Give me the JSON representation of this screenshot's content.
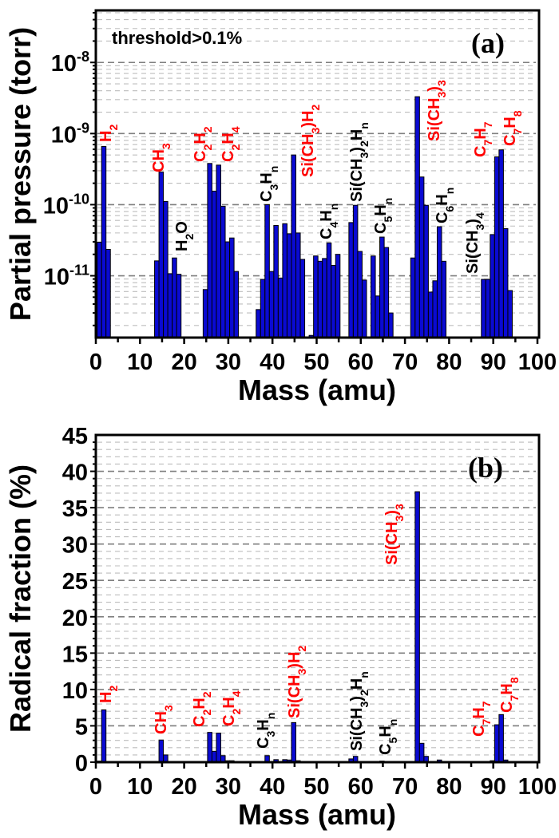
{
  "chart_data": [
    {
      "type": "bar",
      "panel_label": "(a)",
      "annotation_text": "threshold>0.1%",
      "xlabel": "Mass (amu)",
      "ylabel": "Partial pressure (torr)",
      "yscale": "log",
      "xlim": [
        0,
        100
      ],
      "ylim": [
        1.35e-12,
        5.4e-08
      ],
      "grid": true,
      "xticks": [
        0,
        10,
        20,
        30,
        40,
        50,
        60,
        70,
        80,
        90,
        100
      ],
      "yticks": [
        {
          "value": 1e-08,
          "base": "10",
          "exp": "-8"
        },
        {
          "value": 1e-09,
          "base": "10",
          "exp": "-9"
        },
        {
          "value": 1e-10,
          "base": "10",
          "exp": "-10"
        },
        {
          "value": 1e-11,
          "base": "10",
          "exp": "-11"
        }
      ],
      "bar_color": "#0a0ad2",
      "x": [
        1,
        2,
        3,
        14,
        15,
        16,
        17,
        18,
        19,
        25,
        26,
        27,
        28,
        29,
        30,
        31,
        32,
        37,
        38,
        39,
        40,
        41,
        42,
        43,
        44,
        45,
        46,
        47,
        49,
        50,
        51,
        52,
        53,
        54,
        55,
        58,
        59,
        60,
        61,
        63,
        64,
        65,
        66,
        67,
        72,
        73,
        74,
        75,
        76,
        77,
        78,
        79,
        88,
        89,
        90,
        91,
        92,
        93,
        94
      ],
      "values": [
        2.96e-11,
        6.6e-10,
        2.35e-11,
        1.62e-11,
        2.87e-10,
        1.11e-10,
        1.07e-11,
        1.78e-11,
        1.05e-11,
        6.4e-12,
        3.8e-10,
        1.55e-10,
        3.6e-10,
        9.5e-11,
        3e-11,
        3.4e-11,
        1.15e-11,
        3.35e-12,
        8.9e-12,
        1e-10,
        1.15e-11,
        5.1e-11,
        9.3e-12,
        5.4e-11,
        3.9e-11,
        5e-10,
        4e-11,
        1.7e-11,
        1.45e-12,
        1.9e-11,
        1.6e-11,
        1.75e-11,
        2.9e-11,
        1.4e-11,
        2e-11,
        5.6e-11,
        9.8e-11,
        2.2e-11,
        8.7e-12,
        1.9e-11,
        5.2e-12,
        3.5e-11,
        2.5e-11,
        3e-12,
        1.78e-11,
        3.3e-09,
        2.45e-10,
        9.8e-11,
        5.9e-12,
        8.5e-12,
        4.9e-11,
        1.6e-11,
        8.9e-12,
        8.9e-12,
        3.8e-11,
        4.7e-10,
        5.9e-10,
        4.6e-11,
        6.2e-12
      ],
      "labels": [
        {
          "text": "H2",
          "color": "#ff0000"
        },
        {
          "text": "CH3",
          "color": "#ff0000"
        },
        {
          "text": "H2O",
          "color": "#000000"
        },
        {
          "text": "C2H2",
          "color": "#ff0000"
        },
        {
          "text": "C2H4",
          "color": "#ff0000"
        },
        {
          "text": "C3Hn",
          "color": "#000000"
        },
        {
          "text": "Si(CH3)H2",
          "color": "#ff0000"
        },
        {
          "text": "C4Hn",
          "color": "#000000"
        },
        {
          "text": "Si(CH3)2Hn",
          "color": "#000000"
        },
        {
          "text": "C5Hn",
          "color": "#000000"
        },
        {
          "text": "Si(CH3)3",
          "color": "#ff0000"
        },
        {
          "text": "C6Hn",
          "color": "#000000"
        },
        {
          "text": "Si(CH3)4",
          "color": "#000000"
        },
        {
          "text": "C7H7",
          "color": "#ff0000"
        },
        {
          "text": "C7H8",
          "color": "#ff0000"
        }
      ]
    },
    {
      "type": "bar",
      "panel_label": "(b)",
      "xlabel": "Mass (amu)",
      "ylabel": "Radical fraction (%)",
      "yscale": "linear",
      "xlim": [
        0,
        100
      ],
      "ylim": [
        0,
        45
      ],
      "grid": true,
      "xticks": [
        0,
        10,
        20,
        30,
        40,
        50,
        60,
        70,
        80,
        90,
        100
      ],
      "yticks": [
        0,
        5,
        10,
        15,
        20,
        25,
        30,
        35,
        40,
        45
      ],
      "bar_color": "#0a0ad2",
      "x": [
        1,
        2,
        3,
        14,
        15,
        16,
        18,
        26,
        27,
        28,
        29,
        30,
        31,
        39,
        41,
        43,
        44,
        45,
        46,
        50,
        53,
        58,
        59,
        65,
        72,
        73,
        74,
        75,
        78,
        90,
        91,
        92,
        93
      ],
      "values": [
        0.15,
        7.2,
        0.1,
        0.1,
        3.05,
        1.0,
        0.05,
        4.1,
        1.5,
        4.0,
        0.9,
        0.2,
        0.2,
        0.9,
        0.35,
        0.35,
        0.3,
        5.45,
        0.2,
        0.05,
        0.1,
        0.45,
        0.8,
        0.15,
        0.1,
        37.2,
        2.6,
        0.8,
        0.3,
        0.2,
        5.15,
        6.55,
        0.3
      ],
      "labels": [
        {
          "text": "H2",
          "color": "#ff0000"
        },
        {
          "text": "CH3",
          "color": "#ff0000"
        },
        {
          "text": "C2H2",
          "color": "#ff0000"
        },
        {
          "text": "C2H4",
          "color": "#ff0000"
        },
        {
          "text": "C3Hn",
          "color": "#000000"
        },
        {
          "text": "Si(CH3)H2",
          "color": "#ff0000"
        },
        {
          "text": "Si(CH3)2Hn",
          "color": "#000000"
        },
        {
          "text": "C5Hn",
          "color": "#000000"
        },
        {
          "text": "Si(CH3)3",
          "color": "#ff0000"
        },
        {
          "text": "C7H7",
          "color": "#ff0000"
        },
        {
          "text": "C7H8",
          "color": "#ff0000"
        }
      ]
    }
  ]
}
